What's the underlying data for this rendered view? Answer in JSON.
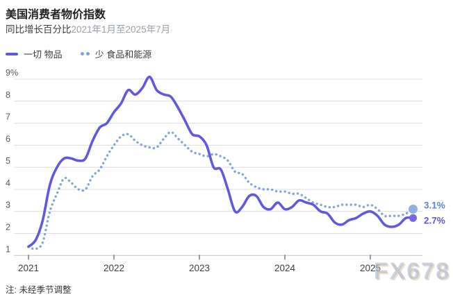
{
  "header": {
    "title": "美国消费者物价指数",
    "subtitle_label": "同比增长百分比",
    "subtitle_range": "2021年1月至2025年7月"
  },
  "legend": {
    "items": [
      {
        "id": "all-items",
        "label": "一切 物品",
        "style": "solid",
        "color": "#6158e0"
      },
      {
        "id": "core",
        "label": "少 食品和能源",
        "style": "dotted",
        "color": "#7da4de"
      }
    ]
  },
  "note": "注: 未经季节调整",
  "watermark": "FX678",
  "chart_data": {
    "type": "line",
    "title": "美国消费者物价指数",
    "subtitle": "同比增长百分比 2021年1月至2025年7月",
    "x_unit": "month",
    "x_range": [
      "2021-01",
      "2025-07"
    ],
    "ylabel": "",
    "xlabel": "",
    "ylim": [
      1,
      9
    ],
    "grid": true,
    "legend_position": "top-left",
    "y_ticks": [
      {
        "value": 9,
        "label": "9%"
      },
      {
        "value": 8,
        "label": "8"
      },
      {
        "value": 7,
        "label": "7"
      },
      {
        "value": 6,
        "label": "6"
      },
      {
        "value": 5,
        "label": "5"
      },
      {
        "value": 4,
        "label": "4"
      },
      {
        "value": 3,
        "label": "3"
      },
      {
        "value": 2,
        "label": "2"
      },
      {
        "value": 1,
        "label": "1"
      }
    ],
    "x_ticks": [
      {
        "month_index": 0,
        "label": "2021"
      },
      {
        "month_index": 12,
        "label": "2022"
      },
      {
        "month_index": 24,
        "label": "2023"
      },
      {
        "month_index": 36,
        "label": "2024"
      },
      {
        "month_index": 48,
        "label": "2025"
      }
    ],
    "colors": {
      "grid": "#dcdcdc",
      "axis": "#c2c2c2",
      "tick": "#595d63",
      "y_label": "#55595e",
      "x_label": "#3b3e43"
    },
    "series": [
      {
        "id": "core",
        "name": "少 食品和能源",
        "style": "dotted",
        "color": "#7da4de",
        "dot_color": "#8fb2e5",
        "label_color": "#5b87c9",
        "end_label": "3.1%",
        "label_dy": -1,
        "values": [
          1.4,
          1.3,
          1.6,
          3.0,
          3.8,
          4.5,
          4.3,
          4.0,
          4.0,
          4.6,
          4.9,
          5.5,
          6.0,
          6.4,
          6.5,
          6.2,
          6.0,
          5.9,
          5.9,
          6.3,
          6.6,
          6.3,
          6.0,
          5.7,
          5.6,
          5.5,
          5.6,
          5.5,
          5.3,
          4.8,
          4.7,
          4.3,
          4.1,
          4.0,
          4.0,
          3.9,
          3.9,
          3.8,
          3.8,
          3.6,
          3.4,
          3.3,
          3.2,
          3.2,
          3.3,
          3.3,
          3.3,
          3.2,
          3.3,
          3.1,
          2.8,
          2.8,
          2.8,
          2.9,
          3.1
        ]
      },
      {
        "id": "all-items",
        "name": "一切 物品",
        "style": "solid",
        "color": "#6158e0",
        "dot_color": "#7468e4",
        "label_color": "#6157d8",
        "end_label": "2.7%",
        "label_dy": 8,
        "values": [
          1.4,
          1.7,
          2.6,
          4.2,
          5.0,
          5.4,
          5.4,
          5.3,
          5.4,
          6.2,
          6.8,
          7.0,
          7.5,
          7.9,
          8.5,
          8.3,
          8.6,
          9.1,
          8.5,
          8.3,
          8.2,
          7.7,
          7.1,
          6.5,
          6.4,
          6.0,
          5.0,
          4.9,
          4.0,
          3.0,
          3.2,
          3.7,
          3.7,
          3.2,
          3.1,
          3.4,
          3.1,
          3.2,
          3.5,
          3.4,
          3.3,
          3.0,
          2.9,
          2.5,
          2.4,
          2.6,
          2.7,
          2.9,
          3.0,
          2.8,
          2.4,
          2.3,
          2.4,
          2.7,
          2.7
        ]
      }
    ]
  }
}
